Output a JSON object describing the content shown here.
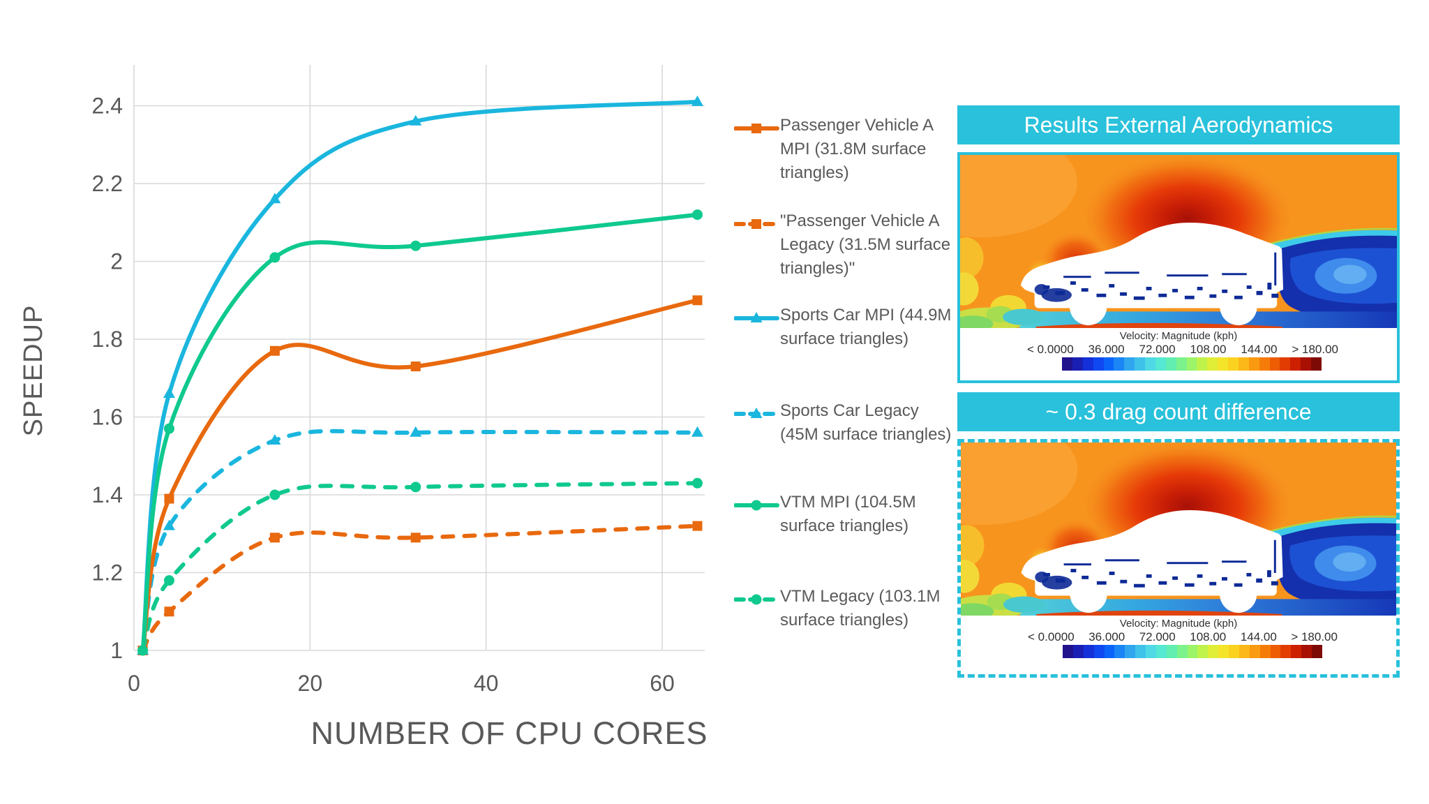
{
  "chart_data": {
    "type": "line",
    "title": "",
    "xlabel": "NUMBER OF CPU CORES",
    "ylabel": "SPEEDUP",
    "x": [
      1,
      4,
      16,
      32,
      64
    ],
    "xlim": [
      0,
      65
    ],
    "ylim": [
      1,
      2.45
    ],
    "xticks": [
      0,
      20,
      40,
      60
    ],
    "yticks": [
      1,
      1.2,
      1.4,
      1.6,
      1.8,
      2,
      2.2,
      2.4
    ],
    "grid": true,
    "legend_position": "right",
    "series": [
      {
        "name": "Passenger Vehicle A MPI (31.8M surface triangles)",
        "color": "#E8690E",
        "dash": false,
        "marker": "square",
        "values": [
          1,
          1.39,
          1.77,
          1.73,
          1.9
        ]
      },
      {
        "name": "\"Passenger Vehicle A Legacy (31.5M surface triangles)\"",
        "color": "#E8690E",
        "dash": true,
        "marker": "square",
        "values": [
          1,
          1.1,
          1.29,
          1.29,
          1.32
        ]
      },
      {
        "name": "Sports Car MPI (44.9M surface triangles)",
        "color": "#1AB6DE",
        "dash": false,
        "marker": "triangle",
        "values": [
          1,
          1.66,
          2.16,
          2.36,
          2.41
        ]
      },
      {
        "name": "Sports Car Legacy (45M surface triangles)",
        "color": "#1AB6DE",
        "dash": true,
        "marker": "triangle",
        "values": [
          1,
          1.32,
          1.54,
          1.56,
          1.56
        ]
      },
      {
        "name": "VTM MPI (104.5M surface triangles)",
        "color": "#0FC98E",
        "dash": false,
        "marker": "circle",
        "values": [
          1,
          1.57,
          2.01,
          2.04,
          2.12
        ]
      },
      {
        "name": "VTM Legacy (103.1M surface triangles)",
        "color": "#0FC98E",
        "dash": true,
        "marker": "circle",
        "values": [
          1,
          1.18,
          1.4,
          1.42,
          1.43
        ]
      }
    ]
  },
  "panels": {
    "accent_color": "#29C1DB",
    "top": {
      "title": "Results External Aerodynamics",
      "border": "solid"
    },
    "bottom": {
      "title": "~ 0.3 drag count difference",
      "border": "dashed"
    },
    "colorbar": {
      "title": "Velocity: Magnitude (kph)",
      "labels": [
        "< 0.0000",
        "36.000",
        "72.000",
        "108.00",
        "144.00",
        "> 180.00"
      ],
      "colors": [
        "#20138C",
        "#1A1FB4",
        "#1430D8",
        "#0F48F0",
        "#0A64FA",
        "#1B85F5",
        "#2FA6EE",
        "#3FC2EA",
        "#4FD9E4",
        "#55E8D2",
        "#62EEB0",
        "#7CF28C",
        "#9CF468",
        "#C0F24C",
        "#E0EE38",
        "#F4E42A",
        "#FCD220",
        "#FCB818",
        "#FA9A10",
        "#F57C08",
        "#EE5C04",
        "#E23C02",
        "#CC2000",
        "#A81004",
        "#7E0A06"
      ]
    }
  },
  "text_color": "#595959",
  "grid_color": "#D9D9D9"
}
